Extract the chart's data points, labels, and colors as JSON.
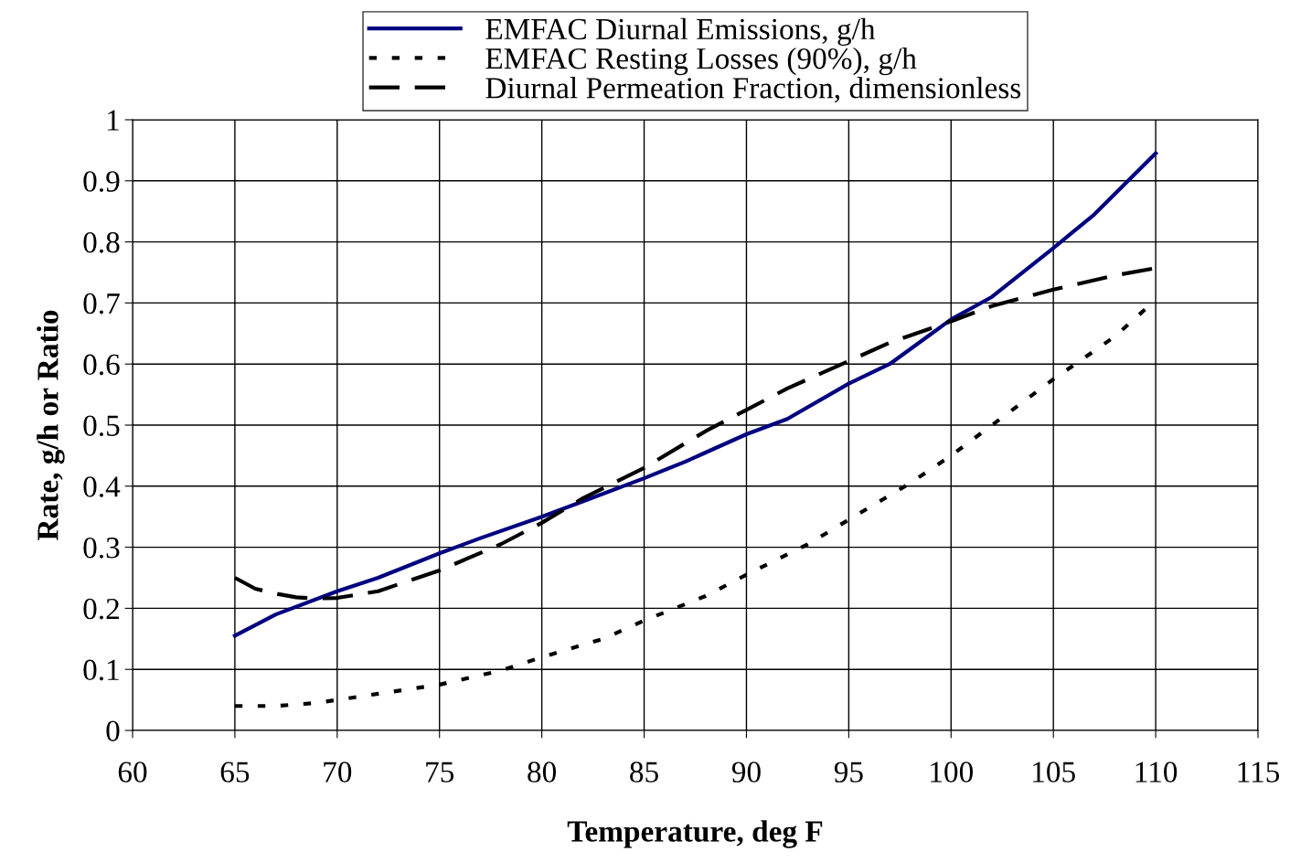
{
  "chart_data": {
    "type": "line",
    "xlabel": "Temperature, deg F",
    "ylabel": "Rate, g/h or Ratio",
    "xlim": [
      60,
      115
    ],
    "xticks": [
      60,
      65,
      70,
      75,
      80,
      85,
      90,
      95,
      100,
      105,
      110,
      115
    ],
    "ylim": [
      0,
      1
    ],
    "yticks": [
      0,
      0.1,
      0.2,
      0.3,
      0.4,
      0.5,
      0.6,
      0.7,
      0.8,
      0.9,
      1
    ],
    "grid": true,
    "legend": "top",
    "marker": "none",
    "series": [
      {
        "name": "EMFAC Diurnal Emissions, g/h",
        "color": "#000080",
        "line_style": "solid",
        "x": [
          65,
          67,
          70,
          72,
          75,
          77,
          80,
          82,
          85,
          87,
          90,
          92,
          95,
          97,
          100,
          102,
          105,
          107,
          110
        ],
        "values": [
          0.155,
          0.19,
          0.228,
          0.25,
          0.29,
          0.315,
          0.35,
          0.375,
          0.413,
          0.44,
          0.485,
          0.51,
          0.568,
          0.6,
          0.673,
          0.71,
          0.79,
          0.845,
          0.945
        ]
      },
      {
        "name": "EMFAC Resting Losses (90%), g/h",
        "color": "#000000",
        "line_style": "dotted",
        "x": [
          65,
          67,
          69,
          72,
          75,
          78,
          80,
          83,
          85,
          88,
          90,
          93,
          95,
          98,
          100,
          102,
          105,
          108,
          110
        ],
        "values": [
          0.04,
          0.04,
          0.045,
          0.06,
          0.075,
          0.098,
          0.12,
          0.15,
          0.18,
          0.22,
          0.255,
          0.305,
          0.345,
          0.405,
          0.45,
          0.5,
          0.575,
          0.645,
          0.705
        ]
      },
      {
        "name": "Diurnal Permeation Fraction, dimensionless",
        "color": "#000000",
        "line_style": "dashed",
        "x": [
          65,
          66,
          67,
          68,
          69,
          70,
          72,
          75,
          78,
          80,
          82,
          85,
          88,
          90,
          92,
          95,
          97,
          100,
          102,
          105,
          108,
          110
        ],
        "values": [
          0.25,
          0.232,
          0.224,
          0.218,
          0.216,
          0.217,
          0.228,
          0.262,
          0.305,
          0.34,
          0.38,
          0.43,
          0.49,
          0.525,
          0.56,
          0.605,
          0.635,
          0.67,
          0.695,
          0.722,
          0.745,
          0.757
        ]
      }
    ]
  }
}
